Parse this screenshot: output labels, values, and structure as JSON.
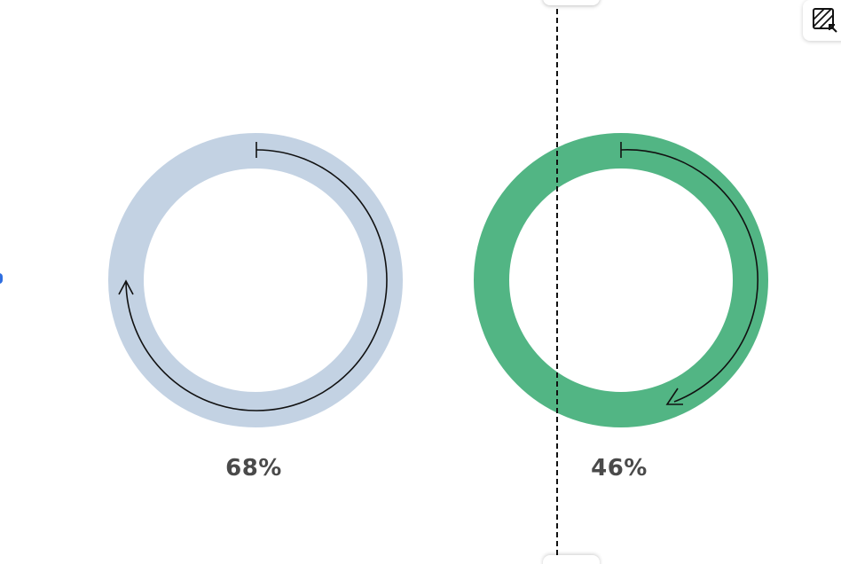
{
  "donuts": [
    {
      "percent": 68,
      "label": "68%",
      "ring_color": "#c3d2e3",
      "arrow_direction": "clockwise"
    },
    {
      "percent": 46,
      "label": "46%",
      "ring_color": "#52b584",
      "arrow_direction": "clockwise"
    }
  ],
  "colors": {
    "label_text": "#4a4a4a",
    "arrow": "#111111",
    "divider": "#111111",
    "edge_dot": "#2f6ee0"
  },
  "icons": {
    "corner_button": "compare-collapse-icon"
  }
}
